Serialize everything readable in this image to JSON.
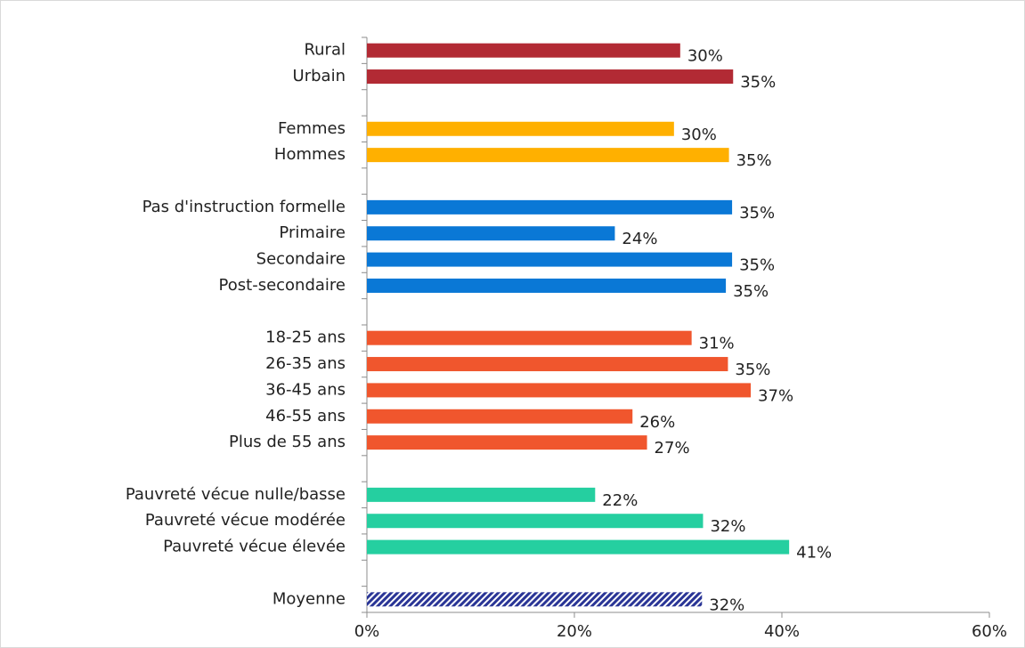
{
  "chart_data": {
    "type": "hbar",
    "categories": [
      "Rural",
      "Urbain",
      null,
      "Femmes",
      "Hommes",
      null,
      "Pas d'instruction formelle",
      "Primaire",
      "Secondaire",
      "Post-secondaire",
      null,
      "18-25 ans",
      "26-35 ans",
      "36-45 ans",
      "46-55 ans",
      "Plus de 55 ans",
      null,
      "Pauvreté vécue nulle/basse",
      "Pauvreté vécue modérée",
      "Pauvreté vécue élevée",
      null,
      "Moyenne"
    ],
    "values": [
      30.2,
      35.3,
      null,
      29.6,
      34.9,
      null,
      35.2,
      23.9,
      35.2,
      34.6,
      null,
      31.3,
      34.8,
      37.0,
      25.6,
      27.0,
      null,
      22.0,
      32.4,
      40.7,
      null,
      32.3
    ],
    "value_labels": [
      "30%",
      "35%",
      null,
      "30%",
      "35%",
      null,
      "35%",
      "24%",
      "35%",
      "35%",
      null,
      "31%",
      "35%",
      "37%",
      "26%",
      "27%",
      null,
      "22%",
      "32%",
      "41%",
      null,
      "32%"
    ],
    "colors": [
      "#b22a34",
      "#b22a34",
      null,
      "#ffb000",
      "#ffb000",
      null,
      "#0a78d6",
      "#0a78d6",
      "#0a78d6",
      "#0a78d6",
      null,
      "#f0562d",
      "#f0562d",
      "#f0562d",
      "#f0562d",
      "#f0562d",
      null,
      "#25cfa0",
      "#25cfa0",
      "#25cfa0",
      null,
      "#2a3596"
    ],
    "hatched": "Moyenne",
    "xlim": [
      0,
      60
    ],
    "xticks": [
      {
        "value": 0,
        "label": "0%"
      },
      {
        "value": 20,
        "label": "20%"
      },
      {
        "value": 40,
        "label": "40%"
      },
      {
        "value": 60,
        "label": "60%"
      }
    ]
  }
}
